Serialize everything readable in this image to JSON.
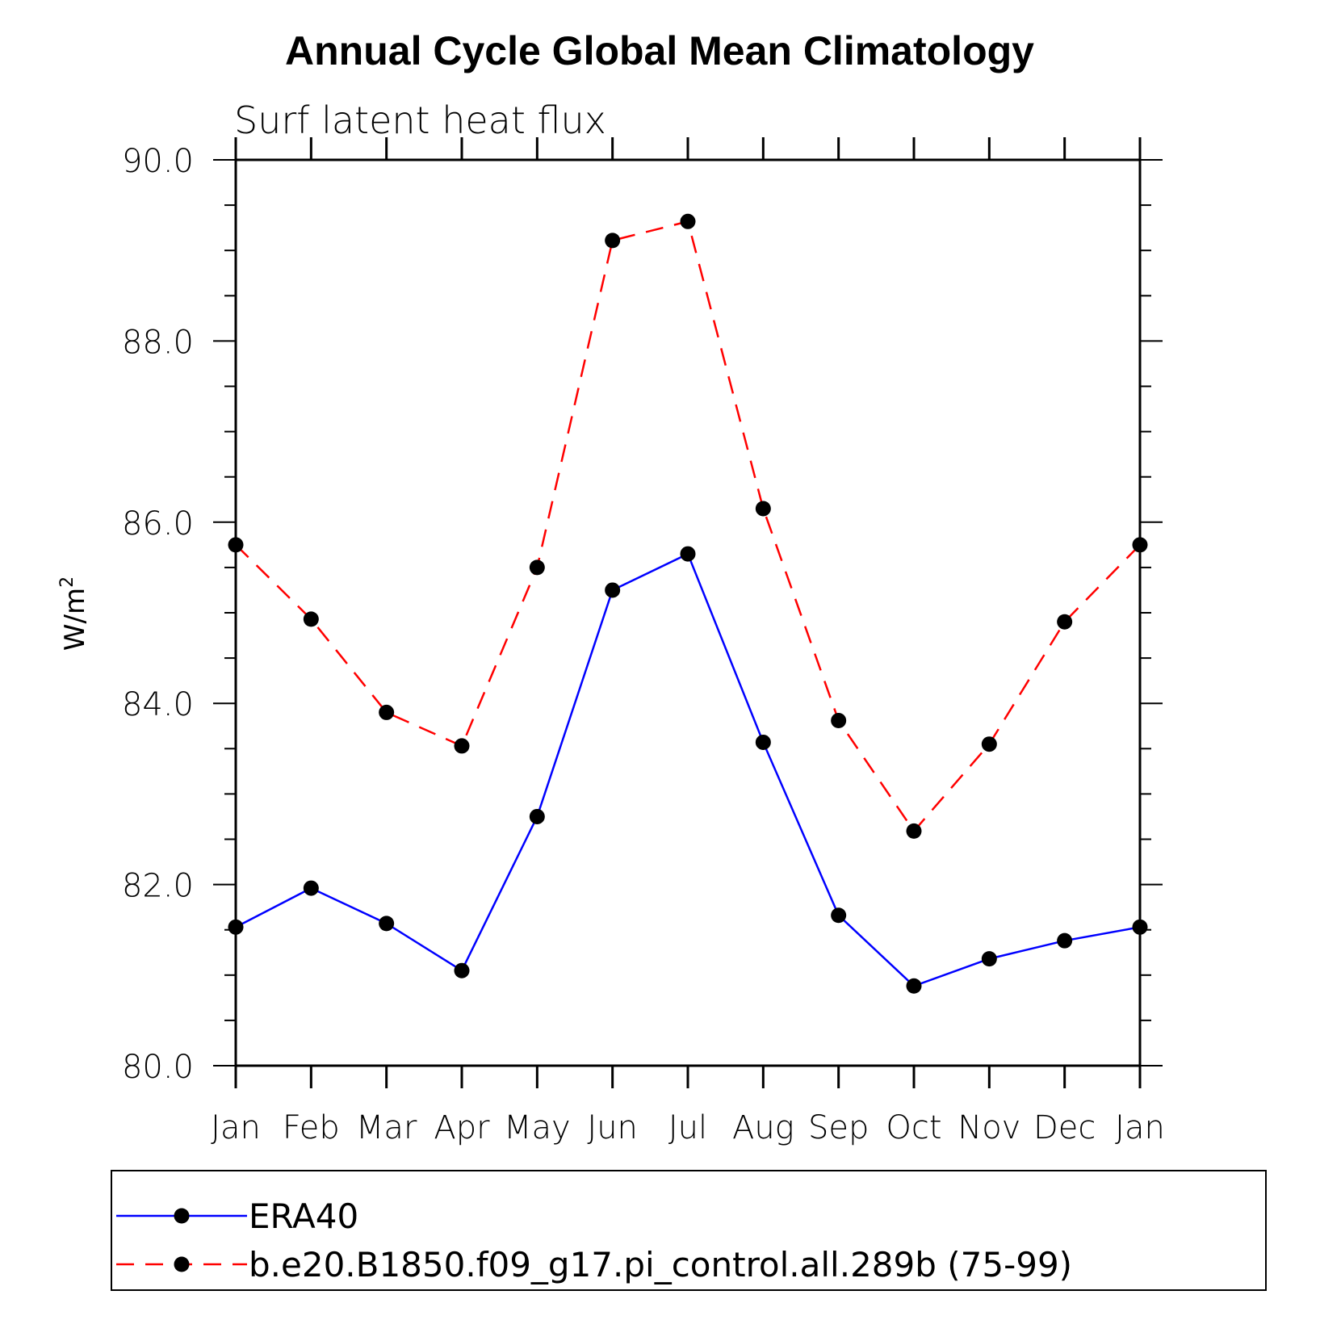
{
  "chart_data": {
    "type": "line",
    "title": "Annual Cycle Global Mean Climatology",
    "subtitle": "Surf latent heat flux",
    "ylabel": "W/m",
    "ylabel_superscript": "2",
    "xlabel": "",
    "ylim": [
      80.0,
      90.0
    ],
    "yticks": [
      "80.0",
      "82.0",
      "84.0",
      "86.0",
      "88.0",
      "90.0"
    ],
    "ytick_values": [
      80,
      82,
      84,
      86,
      88,
      90
    ],
    "categories": [
      "Jan",
      "Feb",
      "Mar",
      "Apr",
      "May",
      "Jun",
      "Jul",
      "Aug",
      "Sep",
      "Oct",
      "Nov",
      "Dec",
      "Jan"
    ],
    "grid": false,
    "legend_position": "bottom",
    "series": [
      {
        "name": "ERA40",
        "color": "#0000ff",
        "dash": "solid",
        "values": [
          81.53,
          81.96,
          81.57,
          81.05,
          82.75,
          85.25,
          85.65,
          83.57,
          81.66,
          80.88,
          81.18,
          81.38,
          81.53
        ]
      },
      {
        "name": "b.e20.B1850.f09_g17.pi_control.all.289b (75-99)",
        "color": "#ff0000",
        "dash": "dashed",
        "values": [
          85.75,
          84.93,
          83.9,
          83.53,
          85.5,
          89.11,
          89.32,
          86.15,
          83.81,
          82.59,
          83.55,
          84.9,
          85.75
        ]
      }
    ]
  }
}
